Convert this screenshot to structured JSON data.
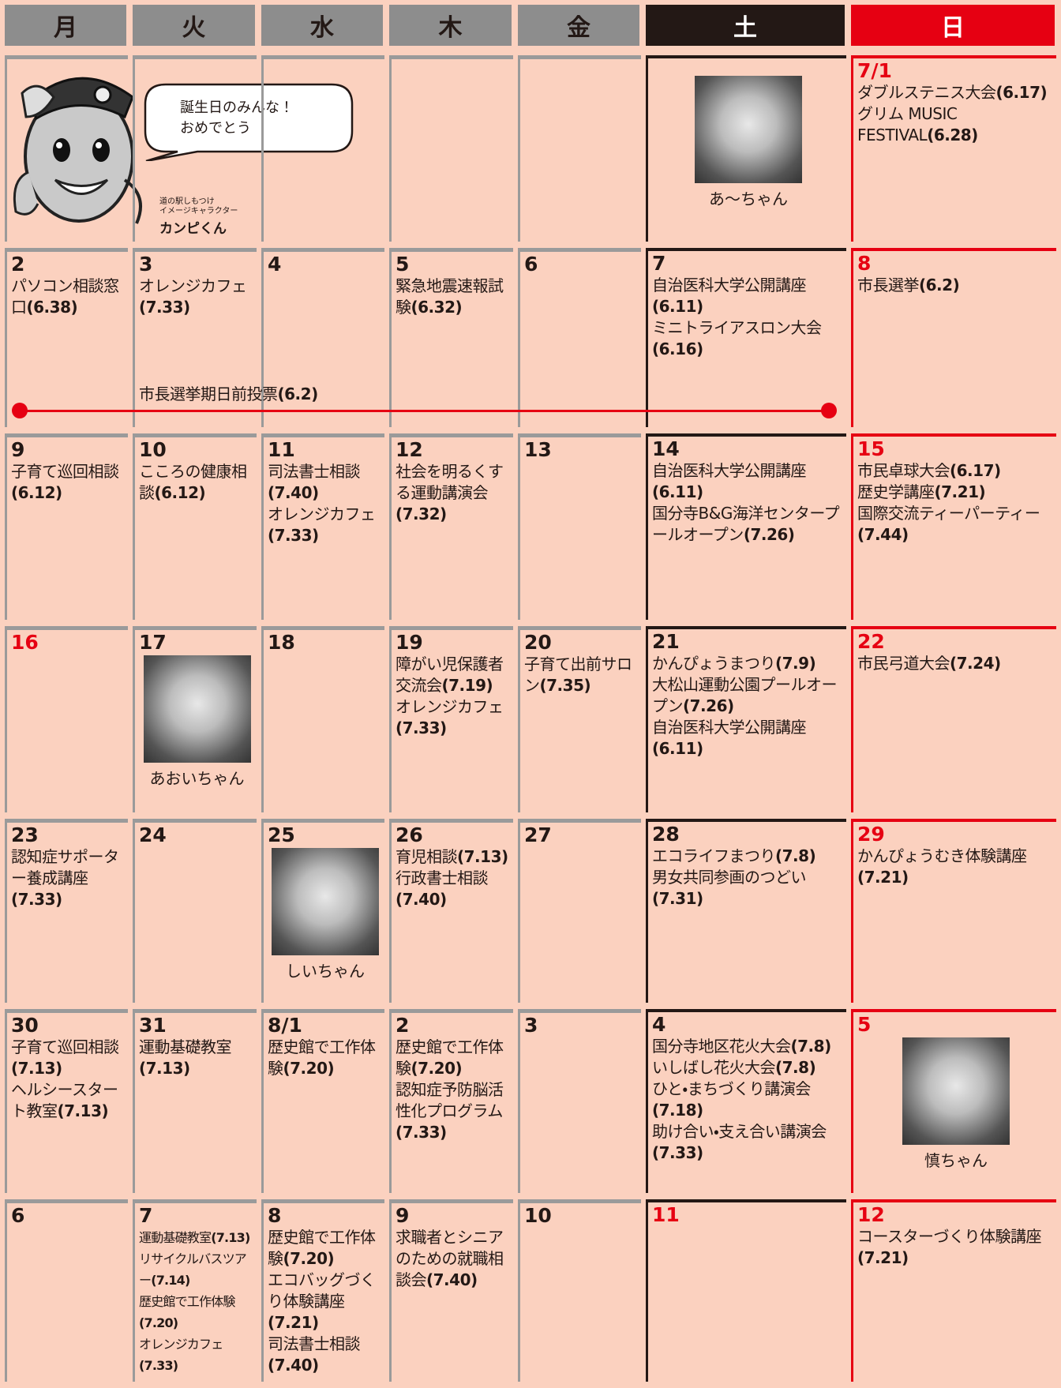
{
  "header": {
    "days": [
      "月",
      "火",
      "水",
      "木",
      "金",
      "土",
      "日"
    ]
  },
  "mascot": {
    "speech": [
      "誕生日のみんな！",
      "おめでとう"
    ],
    "caption": [
      "道の駅しもつけ",
      "イメージキャラクター"
    ],
    "name": "カンピくん"
  },
  "weeks": [
    {
      "days": [
        {},
        {},
        {},
        {},
        {},
        {
          "photo": {
            "caption": "あ〜ちゃん"
          }
        },
        {
          "day": "7/1",
          "events": [
            {
              "text": "ダブルステニス大会",
              "page": "(6.17)"
            },
            {
              "text": "グリム MUSIC FESTIVAL",
              "page": "(6.28)"
            }
          ]
        }
      ]
    },
    {
      "days": [
        {
          "day": "2",
          "events": [
            {
              "text": "パソコン相談窓口",
              "page": "(6.38)"
            }
          ]
        },
        {
          "day": "3",
          "events": [
            {
              "text": "オレンジカフェ",
              "page": "(7.33)"
            }
          ]
        },
        {
          "day": "4"
        },
        {
          "day": "5",
          "events": [
            {
              "text": "緊急地震速報試験",
              "page": "(6.32)"
            }
          ]
        },
        {
          "day": "6"
        },
        {
          "day": "7",
          "events": [
            {
              "text": "自治医科大学公開講座",
              "page": "(6.11)"
            },
            {
              "text": "ミニトライアスロン大会",
              "page": "(6.16)"
            }
          ]
        },
        {
          "day": "8",
          "events": [
            {
              "text": "市長選挙",
              "page": "(6.2)"
            }
          ]
        }
      ],
      "span": {
        "text": "市長選挙期日前投票",
        "page": "(6.2)"
      }
    },
    {
      "days": [
        {
          "day": "9",
          "events": [
            {
              "text": "子育て巡回相談",
              "page": "(6.12)"
            }
          ]
        },
        {
          "day": "10",
          "events": [
            {
              "text": "こころの健康相談",
              "page": "(6.12)"
            }
          ]
        },
        {
          "day": "11",
          "events": [
            {
              "text": "司法書士相談",
              "page": "(7.40)"
            },
            {
              "text": "オレンジカフェ",
              "page": "(7.33)"
            }
          ]
        },
        {
          "day": "12",
          "events": [
            {
              "text": "社会を明るくする運動講演会",
              "page": "(7.32)"
            }
          ]
        },
        {
          "day": "13"
        },
        {
          "day": "14",
          "events": [
            {
              "text": "自治医科大学公開講座",
              "page": "(6.11)"
            },
            {
              "text": "国分寺B&G海洋センタープールオープン",
              "page": "(7.26)"
            }
          ]
        },
        {
          "day": "15",
          "events": [
            {
              "text": "市民卓球大会",
              "page": "(6.17)"
            },
            {
              "text": "歴史学講座",
              "page": "(7.21)"
            },
            {
              "text": "国際交流ティーパーティー",
              "page": "(7.44)"
            }
          ]
        }
      ]
    },
    {
      "days": [
        {
          "day": "16",
          "holiday": true
        },
        {
          "day": "17",
          "photo": {
            "caption": "あおいちゃん"
          }
        },
        {
          "day": "18"
        },
        {
          "day": "19",
          "events": [
            {
              "text": "障がい児保護者交流会",
              "page": "(7.19)"
            },
            {
              "text": "オレンジカフェ",
              "page": "(7.33)"
            }
          ]
        },
        {
          "day": "20",
          "events": [
            {
              "text": "子育て出前サロン",
              "page": "(7.35)"
            }
          ]
        },
        {
          "day": "21",
          "events": [
            {
              "text": "かんぴょうまつり",
              "page": "(7.9)"
            },
            {
              "text": "大松山運動公園プールオープン",
              "page": "(7.26)"
            },
            {
              "text": "自治医科大学公開講座",
              "page": "(6.11)"
            }
          ]
        },
        {
          "day": "22",
          "events": [
            {
              "text": "市民弓道大会",
              "page": "(7.24)"
            }
          ]
        }
      ]
    },
    {
      "days": [
        {
          "day": "23",
          "events": [
            {
              "text": "認知症サポーター養成講座",
              "page": "(7.33)"
            }
          ]
        },
        {
          "day": "24"
        },
        {
          "day": "25",
          "photo": {
            "caption": "しいちゃん"
          }
        },
        {
          "day": "26",
          "events": [
            {
              "text": "育児相談",
              "page": "(7.13)"
            },
            {
              "text": "行政書士相談",
              "page": "(7.40)"
            }
          ]
        },
        {
          "day": "27"
        },
        {
          "day": "28",
          "events": [
            {
              "text": "エコライフまつり",
              "page": "(7.8)"
            },
            {
              "text": "男女共同参画のつどい",
              "page": "(7.31)"
            }
          ]
        },
        {
          "day": "29",
          "events": [
            {
              "text": "かんぴょうむき体験講座",
              "page": "(7.21)"
            }
          ]
        }
      ]
    },
    {
      "days": [
        {
          "day": "30",
          "events": [
            {
              "text": "子育て巡回相談",
              "page": "(7.13)"
            },
            {
              "text": "ヘルシースタート教室",
              "page": "(7.13)"
            }
          ]
        },
        {
          "day": "31",
          "events": [
            {
              "text": "運動基礎教室",
              "page": "(7.13)"
            }
          ]
        },
        {
          "day": "8/1",
          "events": [
            {
              "text": "歴史館で工作体験",
              "page": "(7.20)"
            }
          ]
        },
        {
          "day": "2",
          "events": [
            {
              "text": "歴史館で工作体験",
              "page": "(7.20)"
            },
            {
              "text": "認知症予防脳活性化プログラム",
              "page": "(7.33)"
            }
          ]
        },
        {
          "day": "3"
        },
        {
          "day": "4",
          "events": [
            {
              "text": "国分寺地区花火大会",
              "page": "(7.8)"
            },
            {
              "text": "いしばし花火大会",
              "page": "(7.8)"
            },
            {
              "text": "ひと・まちづくり講演会",
              "page": "(7.18)"
            },
            {
              "text": "助け合い・支え合い講演会",
              "page": "(7.33)"
            }
          ]
        },
        {
          "day": "5",
          "photo": {
            "caption": "慎ちゃん"
          }
        }
      ]
    },
    {
      "days": [
        {
          "day": "6"
        },
        {
          "day": "7",
          "compact": true,
          "events": [
            {
              "text": "運動基礎教室",
              "page": "(7.13)"
            },
            {
              "text": "リサイクルバスツアー",
              "page": "(7.14)"
            },
            {
              "text": "歴史館で工作体験",
              "page": "(7.20)"
            },
            {
              "text": "オレンジカフェ",
              "page": "(7.33)"
            }
          ]
        },
        {
          "day": "8",
          "events": [
            {
              "text": "歴史館で工作体験",
              "page": "(7.20)"
            },
            {
              "text": "エコバッグづくり体験講座",
              "page": "(7.21)"
            },
            {
              "text": "司法書士相談",
              "page": "(7.40)"
            }
          ]
        },
        {
          "day": "9",
          "events": [
            {
              "text": "求職者とシニアのための就職相談会",
              "page": "(7.40)"
            }
          ]
        },
        {
          "day": "10"
        },
        {
          "day": "11",
          "holiday": true
        },
        {
          "day": "12",
          "events": [
            {
              "text": "コースターづくり体験講座",
              "page": "(7.21)"
            }
          ]
        }
      ]
    }
  ]
}
